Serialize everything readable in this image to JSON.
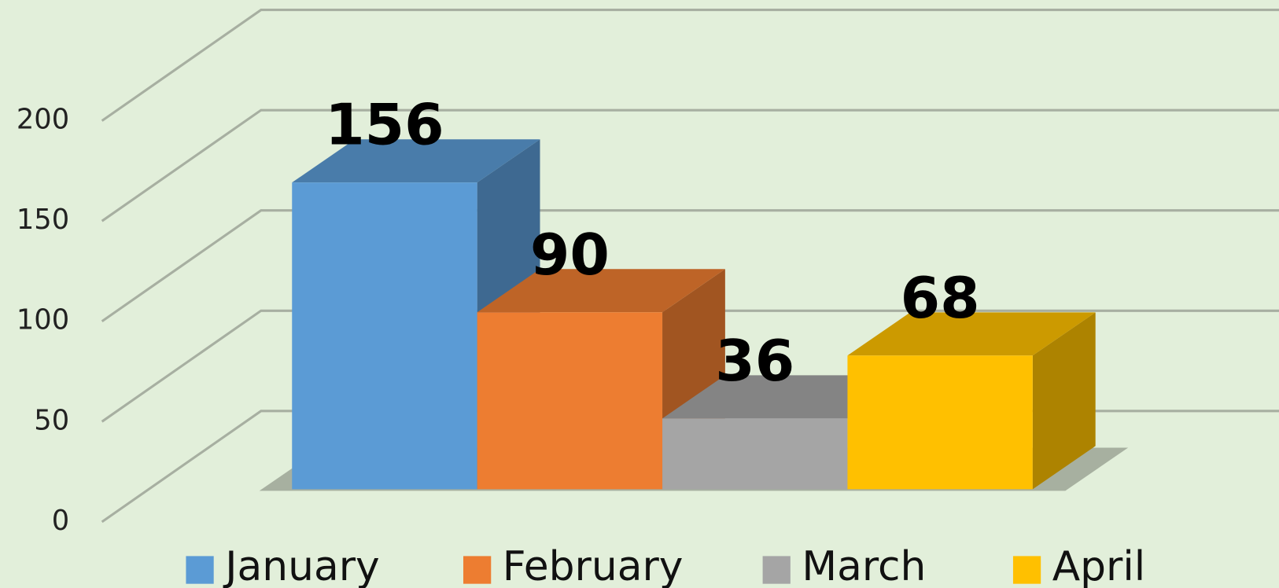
{
  "chart_data": {
    "type": "bar3d",
    "series": [
      {
        "name": "January",
        "color": "#5b9bd5",
        "values": [
          156
        ]
      },
      {
        "name": "February",
        "color": "#ed7d31",
        "values": [
          90
        ]
      },
      {
        "name": "March",
        "color": "#a5a5a5",
        "values": [
          36
        ]
      },
      {
        "name": "April",
        "color": "#ffc000",
        "values": [
          68
        ]
      }
    ],
    "ylim": [
      0,
      200
    ],
    "yticks": [
      0,
      50,
      100,
      150,
      200
    ],
    "grid": true,
    "legend": "bottom"
  }
}
